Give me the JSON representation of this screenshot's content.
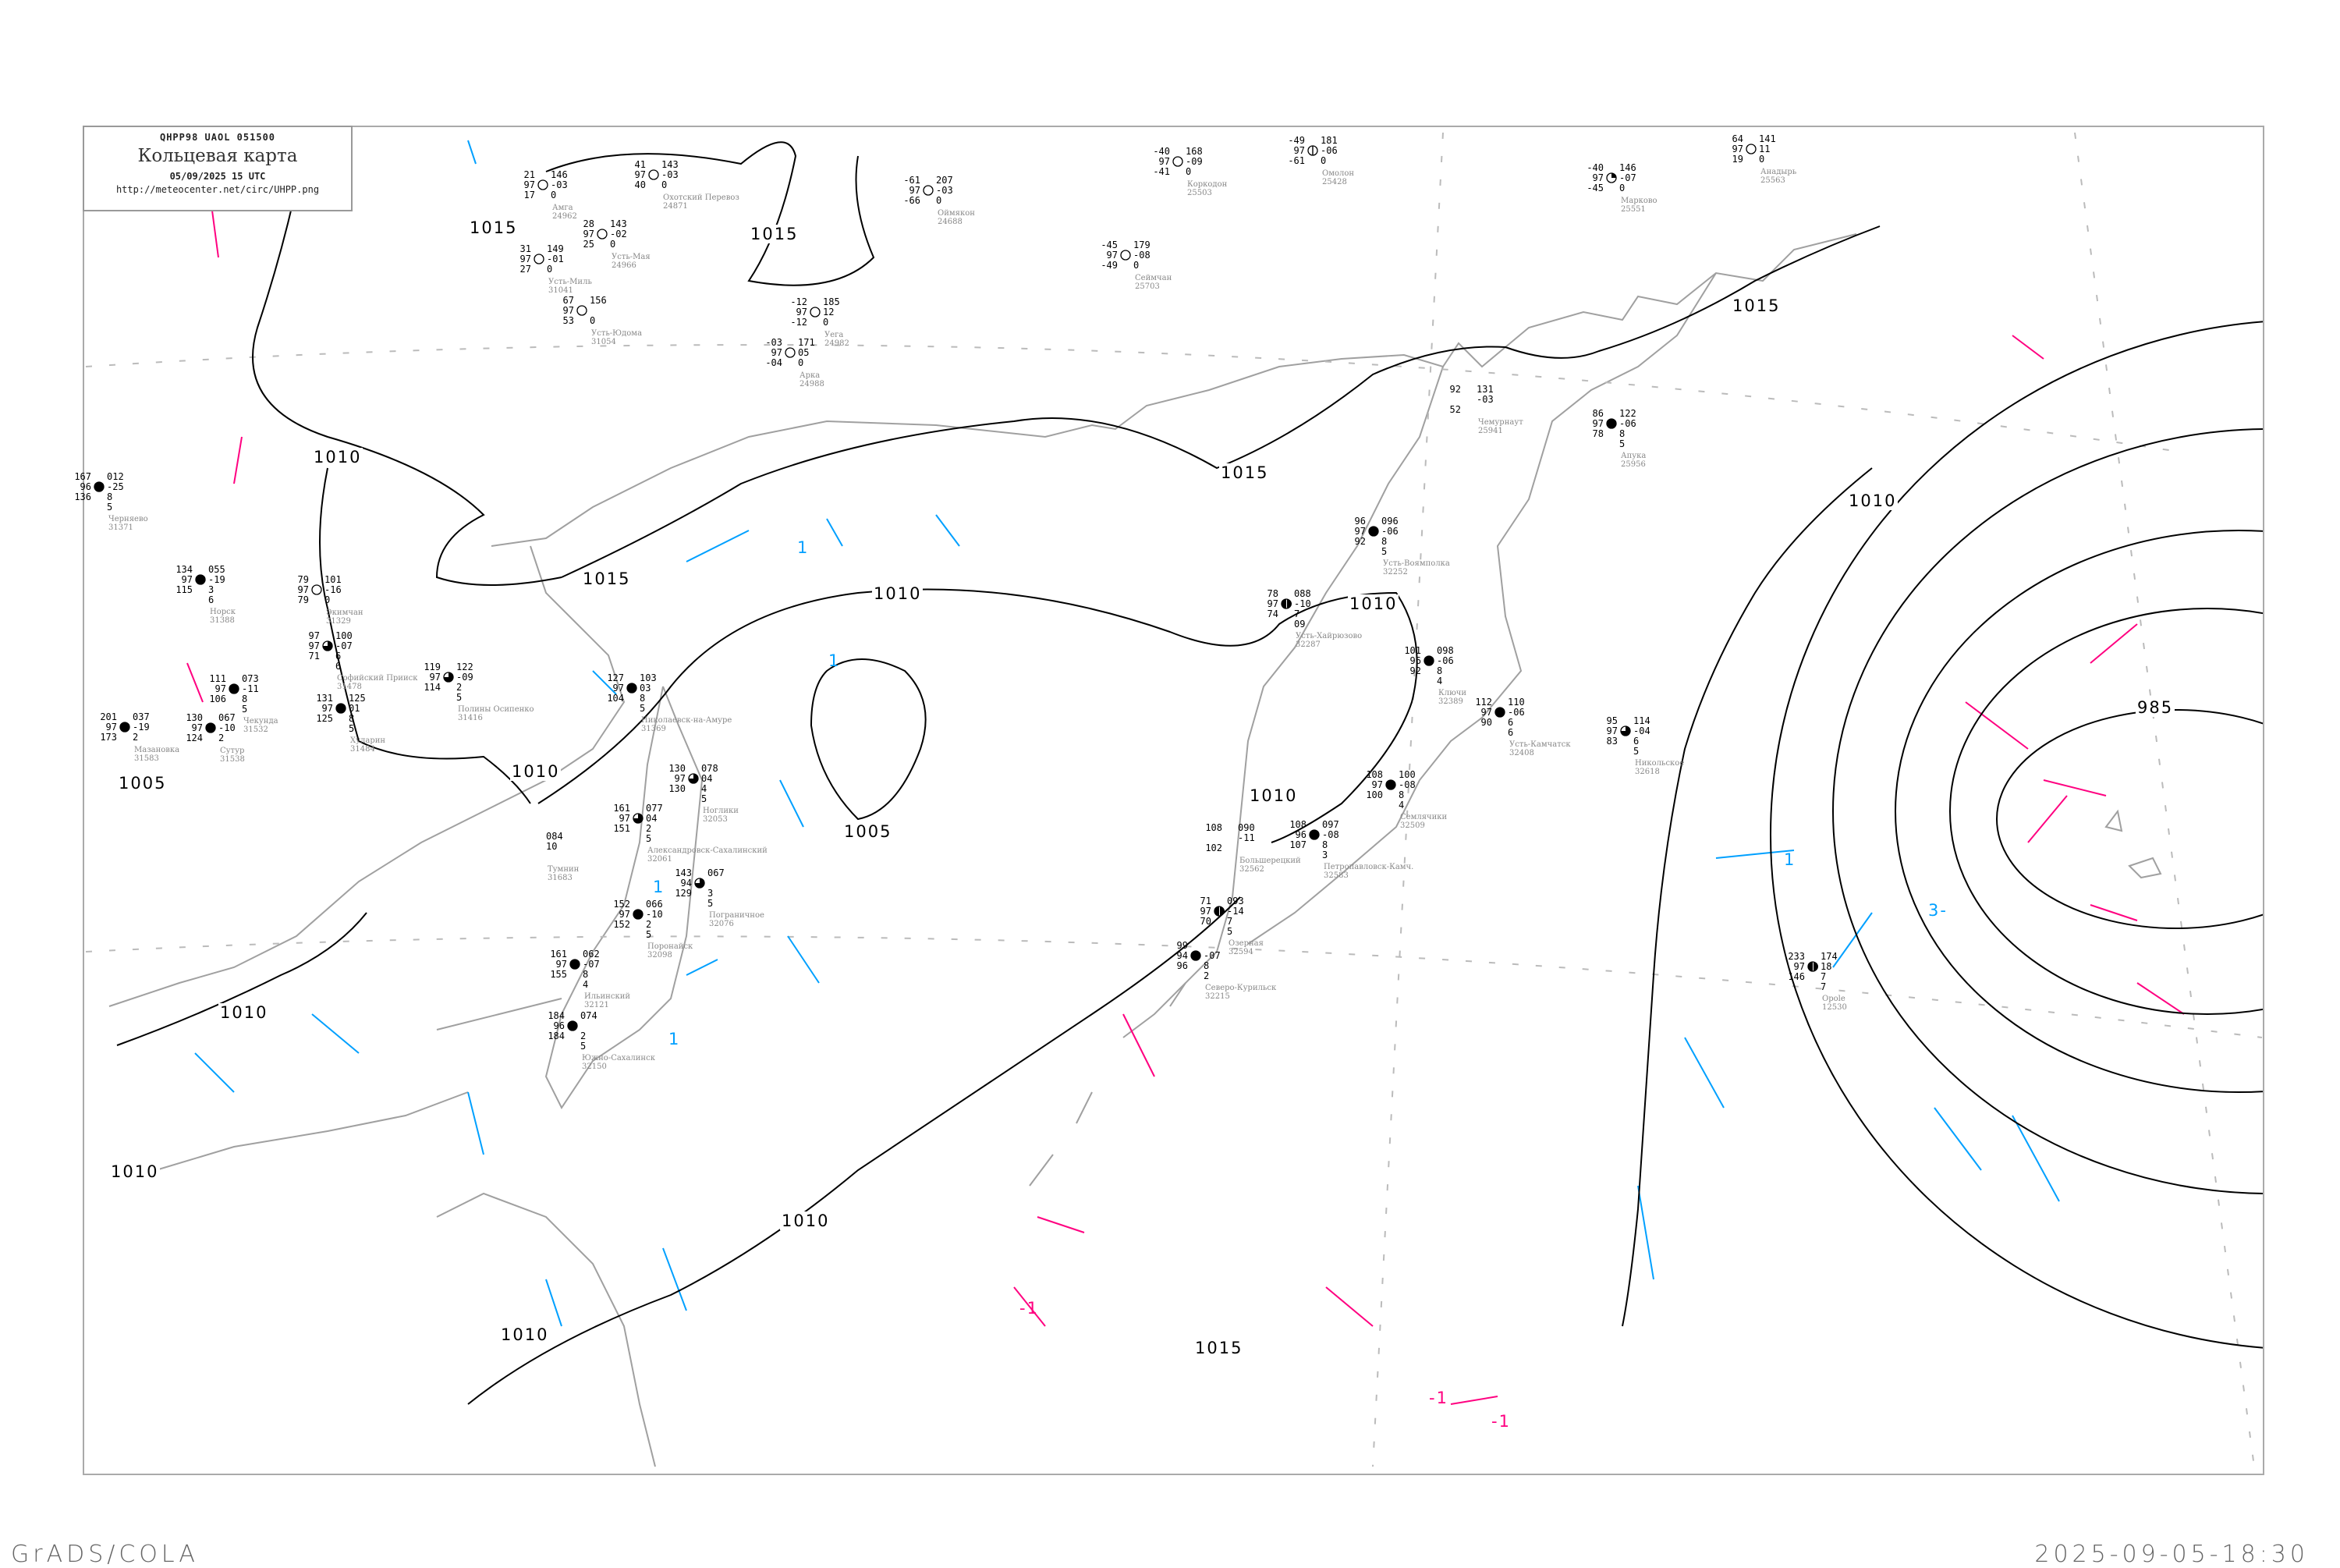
{
  "header": {
    "code": "QHPP98  UAOL  051500",
    "title": "Кольцевая карта",
    "datetime": "05/09/2025 15 UTC",
    "url": "http://meteocenter.net/circ/UHPP.png"
  },
  "footer": {
    "left": "GrADS/COLA",
    "right": "2025-09-05-18:30"
  },
  "colors": {
    "isobar": "#000000",
    "coastline": "#a0a0a0",
    "isallobar_positive": "#ff0080",
    "isallobar_negative": "#00a0ff",
    "precip_green": "#00cc33",
    "precip_red": "#ff3366",
    "precip_yellow": "#ffff99"
  },
  "isobar_labels": [
    "1015",
    "1015",
    "1015",
    "1015",
    "1015",
    "1015",
    "1010",
    "1010",
    "1010",
    "1010",
    "1010",
    "1010",
    "1010",
    "1010",
    "1010",
    "1010",
    "1005",
    "1005",
    "985"
  ],
  "isallobar_labels": [
    "1",
    "1",
    "1",
    "1",
    "-1",
    "-1",
    "-1",
    "1",
    "3-"
  ],
  "stations": [
    {
      "name": "Усть-Воямполка",
      "index": "32252",
      "left": [
        "96",
        "97",
        "92"
      ],
      "right": [
        "096",
        "-06",
        "8",
        "5"
      ],
      "cloud": "full"
    },
    {
      "name": "Ключи",
      "index": "32389",
      "left": [
        "101",
        "96",
        "92"
      ],
      "right": [
        "098",
        "-06",
        "8",
        "4"
      ],
      "cloud": "full"
    },
    {
      "name": "Усть-Камчатск",
      "index": "32408",
      "left": [
        "112",
        "97",
        "90"
      ],
      "right": [
        "110",
        "-06",
        "6",
        "6"
      ],
      "cloud": "full"
    },
    {
      "name": "Усть-Хайрюзово",
      "index": "32287",
      "left": [
        "78",
        "97",
        "74"
      ],
      "right": [
        "088",
        "-10",
        "7",
        "09"
      ],
      "cloud": "half"
    },
    {
      "name": "Никольское",
      "index": "32618",
      "left": [
        "95",
        "97",
        "83"
      ],
      "right": [
        "114",
        "-04",
        "6",
        "5"
      ],
      "cloud": "three-quarter"
    },
    {
      "name": "Петропавловск-Камч.",
      "index": "32583",
      "left": [
        "108",
        "96",
        "107"
      ],
      "right": [
        "097",
        "-08",
        "8",
        "3"
      ],
      "cloud": "full"
    },
    {
      "name": "Семлячики",
      "index": "32509",
      "left": [
        "108",
        "97",
        "100"
      ],
      "right": [
        "100",
        "-08",
        "8",
        "4"
      ],
      "cloud": "full"
    },
    {
      "name": "Большерецкий",
      "index": "32562",
      "left": [
        "108",
        "",
        "102"
      ],
      "right": [
        "090",
        "-11"
      ],
      "cloud": "none"
    },
    {
      "name": "Озерная",
      "index": "32594",
      "left": [
        "71",
        "97",
        "70"
      ],
      "right": [
        "093",
        "-14",
        "7",
        "5"
      ],
      "cloud": "half"
    },
    {
      "name": "Северо-Курильск",
      "index": "32215",
      "left": [
        "99",
        "94",
        "96"
      ],
      "right": [
        "",
        "-07",
        "8",
        "2"
      ],
      "cloud": "full"
    },
    {
      "name": "Николаевск-на-Амуре",
      "index": "31369",
      "left": [
        "127",
        "97",
        "104"
      ],
      "right": [
        "103",
        "03",
        "8",
        "5"
      ],
      "cloud": "full"
    },
    {
      "name": "Ноглики",
      "index": "32053",
      "left": [
        "130",
        "97",
        "130"
      ],
      "right": [
        "078",
        "04",
        "4",
        "5"
      ],
      "cloud": "three-quarter"
    },
    {
      "name": "Александровск-Сахалинский",
      "index": "32061",
      "left": [
        "161",
        "97",
        "151"
      ],
      "right": [
        "077",
        "04",
        "2",
        "5"
      ],
      "cloud": "three-quarter"
    },
    {
      "name": "Пограничное",
      "index": "32076",
      "left": [
        "143",
        "94",
        "129"
      ],
      "right": [
        "067",
        "",
        "3",
        "5"
      ],
      "cloud": "three-quarter"
    },
    {
      "name": "Поронайск",
      "index": "32098",
      "left": [
        "152",
        "97",
        "152"
      ],
      "right": [
        "066",
        "-10",
        "2",
        "5"
      ],
      "cloud": "full"
    },
    {
      "name": "Ильинский",
      "index": "32121",
      "left": [
        "161",
        "97",
        "155"
      ],
      "right": [
        "062",
        "-07",
        "8",
        "4"
      ],
      "cloud": "full"
    },
    {
      "name": "Южно-Сахалинск",
      "index": "32150",
      "left": [
        "184",
        "96",
        "184"
      ],
      "right": [
        "074",
        "",
        "2",
        "5"
      ],
      "cloud": "full"
    },
    {
      "name": "Тумнин",
      "index": "31683",
      "left": [
        "",
        "",
        ""
      ],
      "right": [
        "084",
        "10"
      ],
      "cloud": "none"
    },
    {
      "name": "Амга",
      "index": "24962",
      "left": [
        "21",
        "97",
        "17"
      ],
      "right": [
        "146",
        "-03",
        "0"
      ],
      "cloud": "empty"
    },
    {
      "name": "Охотский Перевоз",
      "index": "24871",
      "left": [
        "41",
        "97",
        "40"
      ],
      "right": [
        "143",
        "-03",
        "0"
      ],
      "cloud": "empty"
    },
    {
      "name": "Усть-Мая",
      "index": "24966",
      "left": [
        "28",
        "97",
        "25"
      ],
      "right": [
        "143",
        "-02",
        "0"
      ],
      "cloud": "empty"
    },
    {
      "name": "Усть-Миль",
      "index": "31041",
      "left": [
        "31",
        "97",
        "27"
      ],
      "right": [
        "149",
        "-01",
        "0"
      ],
      "cloud": "empty"
    },
    {
      "name": "Усть-Юдома",
      "index": "31054",
      "left": [
        "67",
        "97",
        "53"
      ],
      "right": [
        "156",
        "",
        "0"
      ],
      "cloud": "empty"
    },
    {
      "name": "Уега",
      "index": "24982",
      "left": [
        "-12",
        "97",
        "-12"
      ],
      "right": [
        "185",
        "12",
        "0"
      ],
      "cloud": "empty"
    },
    {
      "name": "Арка",
      "index": "24988",
      "left": [
        "-03",
        "97",
        "-04"
      ],
      "right": [
        "171",
        "05",
        "0"
      ],
      "cloud": "empty"
    },
    {
      "name": "Оймякон",
      "index": "24688",
      "left": [
        "-61",
        "97",
        "-66"
      ],
      "right": [
        "207",
        "-03",
        "0"
      ],
      "cloud": "empty"
    },
    {
      "name": "Коркодон",
      "index": "25503",
      "left": [
        "-40",
        "97",
        "-41"
      ],
      "right": [
        "168",
        "-09",
        "0"
      ],
      "cloud": "empty"
    },
    {
      "name": "Омолон",
      "index": "25428",
      "left": [
        "-49",
        "97",
        "-61"
      ],
      "right": [
        "181",
        "-06",
        "0"
      ],
      "cloud": "half-line"
    },
    {
      "name": "Сеймчан",
      "index": "25703",
      "left": [
        "-45",
        "97",
        "-49"
      ],
      "right": [
        "179",
        "-08",
        "0"
      ],
      "cloud": "empty"
    },
    {
      "name": "Марково",
      "index": "25551",
      "left": [
        "-40",
        "97",
        "-45"
      ],
      "right": [
        "146",
        "-07",
        "0"
      ],
      "cloud": "quarter"
    },
    {
      "name": "Анадырь",
      "index": "25563",
      "left": [
        "64",
        "97",
        "19"
      ],
      "right": [
        "141",
        "11",
        "0"
      ],
      "cloud": "empty"
    },
    {
      "name": "Чемурнаут",
      "index": "25941",
      "left": [
        "92",
        "",
        "52"
      ],
      "right": [
        "131",
        "-03"
      ],
      "cloud": "none"
    },
    {
      "name": "Апука",
      "index": "25956",
      "left": [
        "86",
        "97",
        "78"
      ],
      "right": [
        "122",
        "-06",
        "8",
        "5"
      ],
      "cloud": "full"
    },
    {
      "name": "Opole",
      "index": "12530",
      "left": [
        "233",
        "97",
        "146"
      ],
      "right": [
        "174",
        "18",
        "7",
        "7"
      ],
      "cloud": "half"
    },
    {
      "name": "Черняево",
      "index": "31371",
      "left": [
        "167",
        "96",
        "136"
      ],
      "right": [
        "012",
        "-25",
        "8",
        "5"
      ],
      "cloud": "full"
    },
    {
      "name": "Норск",
      "index": "31388",
      "left": [
        "134",
        "97",
        "115"
      ],
      "right": [
        "055",
        "-19",
        "3",
        "6"
      ],
      "cloud": "full"
    },
    {
      "name": "Экимчан",
      "index": "31329",
      "left": [
        "79",
        "97",
        "79"
      ],
      "right": [
        "101",
        "-16",
        "0"
      ],
      "cloud": "empty"
    },
    {
      "name": "Софийский Прииск",
      "index": "31478",
      "left": [
        "97",
        "97",
        "71"
      ],
      "right": [
        "100",
        "-07",
        "6",
        "6"
      ],
      "cloud": "three-quarter"
    },
    {
      "name": "Полины Осипенко",
      "index": "31416",
      "left": [
        "119",
        "97",
        "114"
      ],
      "right": [
        "122",
        "-09",
        "2",
        "5"
      ],
      "cloud": "three-quarter"
    },
    {
      "name": "Чекунда",
      "index": "31532",
      "left": [
        "111",
        "97",
        "106"
      ],
      "right": [
        "073",
        "-11",
        "8",
        "5"
      ],
      "cloud": "full"
    },
    {
      "name": "Сутур",
      "index": "31538",
      "left": [
        "130",
        "97",
        "124"
      ],
      "right": [
        "067",
        "-10",
        "2"
      ],
      "cloud": "full"
    },
    {
      "name": "Хуларин",
      "index": "31484",
      "left": [
        "131",
        "97",
        "125"
      ],
      "right": [
        "125",
        "01",
        "8",
        "5"
      ],
      "cloud": "full"
    },
    {
      "name": "Мазановка",
      "index": "31583",
      "left": [
        "201",
        "97",
        "173"
      ],
      "right": [
        "037",
        "-19",
        "2"
      ],
      "cloud": "full"
    }
  ]
}
